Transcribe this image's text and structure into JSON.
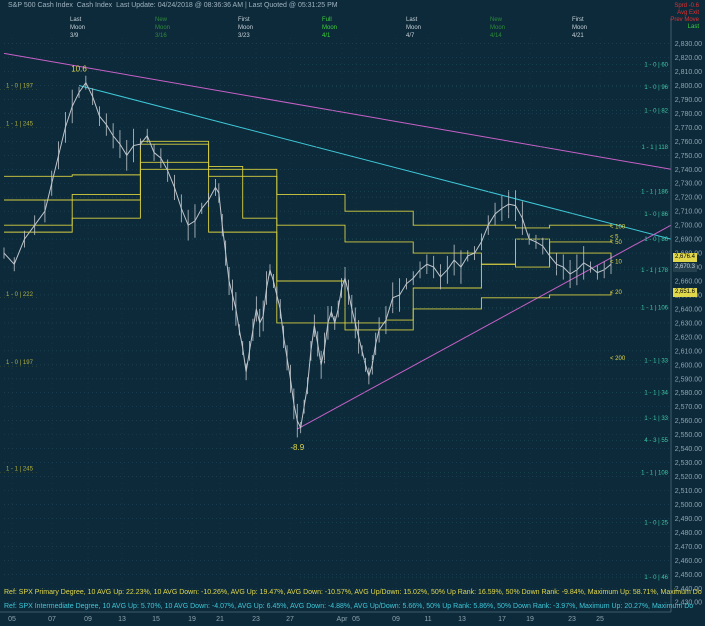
{
  "header": {
    "title": "S&P 500 Cash Index",
    "subtitle": "Cash Index",
    "last_update_label": "Last Update:",
    "last_update": "04/24/2018 @ 08:36:36 AM",
    "last_quoted_label": "Last Quoted @",
    "last_quoted": "05:31:25 PM"
  },
  "moon_phases": [
    {
      "phase": "Last",
      "label": "Moon",
      "date": "3/9",
      "color": "#c8d2d8"
    },
    {
      "phase": "New",
      "label": "Moon",
      "date": "3/16",
      "color": "#2e8b3a"
    },
    {
      "phase": "First",
      "label": "Moon",
      "date": "3/23",
      "color": "#c8d2d8"
    },
    {
      "phase": "Full",
      "label": "Moon",
      "date": "4/1",
      "color": "#3cd23c"
    },
    {
      "phase": "Last",
      "label": "Moon",
      "date": "4/7",
      "color": "#c8d2d8"
    },
    {
      "phase": "New",
      "label": "Moon",
      "date": "4/14",
      "color": "#2e8b3a"
    },
    {
      "phase": "First",
      "label": "Moon",
      "date": "4/21",
      "color": "#c8d2d8"
    }
  ],
  "legend_box": [
    {
      "text": "Sprd  -0.6",
      "color": "#e03030"
    },
    {
      "text": "Avg  Exit",
      "color": "#e03030"
    },
    {
      "text": "Prev  Move",
      "color": "#e03030"
    },
    {
      "text": "Last",
      "color": "#3cd23c"
    }
  ],
  "footers": [
    {
      "text": "Ref: SPX Primary Degree, 10 AVG Up: 22.23%, 10 AVG Down: -10.26%, AVG Up: 19.47%, AVG Down: -10.57%, AVG Up/Down: 15.02%, 50%  Up Rank: 16.59%, 50% Down Rank: -9.84%, Maximum Up: 58.71%, Maximum Do",
      "color": "#e0d84a"
    },
    {
      "text": "Ref: SPX Intermediate Degree, 10 AVG Up: 5.70%, 10 AVG Down: -4.07%, AVG Up: 6.45%, AVG Down: -4.88%, AVG Up/Down: 5.66%, 50%  Up Rank: 5.86%, 50% Down Rank: -3.97%, Maximum Up: 20.27%, Maximum Do",
      "color": "#3ec8d8"
    }
  ],
  "chart_data": {
    "type": "line",
    "xlabel": "",
    "ylabel": "",
    "ylim": [
      2423,
      2834
    ],
    "x_tick_labels": [
      "05",
      "07",
      "09",
      "13",
      "15",
      "19",
      "21",
      "23",
      "27",
      "Apr",
      "05",
      "09",
      "11",
      "13",
      "17",
      "19",
      "23",
      "25"
    ],
    "y_ticks": [
      2430,
      2440,
      2450,
      2460,
      2470,
      2480,
      2490,
      2500,
      2510,
      2520,
      2530,
      2540,
      2550,
      2560,
      2570,
      2580,
      2590,
      2600,
      2610,
      2620,
      2630,
      2640,
      2650,
      2660,
      2670,
      2680,
      2690,
      2700,
      2710,
      2720,
      2730,
      2740,
      2750,
      2760,
      2770,
      2780,
      2790,
      2800,
      2810,
      2820,
      2830
    ],
    "grid": true,
    "price_series": {
      "name": "S&P 500 Cash Index",
      "points": [
        [
          0,
          2680
        ],
        [
          3,
          2672
        ],
        [
          6,
          2690
        ],
        [
          9,
          2700
        ],
        [
          12,
          2710
        ],
        [
          14,
          2730
        ],
        [
          16,
          2750
        ],
        [
          18,
          2770
        ],
        [
          20,
          2785
        ],
        [
          22,
          2795
        ],
        [
          24,
          2802
        ],
        [
          26,
          2792
        ],
        [
          28,
          2778
        ],
        [
          30,
          2772
        ],
        [
          32,
          2764
        ],
        [
          34,
          2758
        ],
        [
          36,
          2750
        ],
        [
          38,
          2757
        ],
        [
          40,
          2758
        ],
        [
          42,
          2764
        ],
        [
          44,
          2752
        ],
        [
          46,
          2748
        ],
        [
          48,
          2739
        ],
        [
          50,
          2727
        ],
        [
          52,
          2712
        ],
        [
          54,
          2700
        ],
        [
          56,
          2703
        ],
        [
          58,
          2712
        ],
        [
          60,
          2718
        ],
        [
          62,
          2727
        ],
        [
          63,
          2723
        ],
        [
          64,
          2700
        ],
        [
          65,
          2680
        ],
        [
          66,
          2660
        ],
        [
          67,
          2650
        ],
        [
          68,
          2640
        ],
        [
          69,
          2625
        ],
        [
          70,
          2612
        ],
        [
          71,
          2595
        ],
        [
          72,
          2610
        ],
        [
          73,
          2625
        ],
        [
          74,
          2640
        ],
        [
          75,
          2630
        ],
        [
          76,
          2635
        ],
        [
          77,
          2655
        ],
        [
          78,
          2668
        ],
        [
          79,
          2660
        ],
        [
          80,
          2650
        ],
        [
          81,
          2640
        ],
        [
          82,
          2620
        ],
        [
          83,
          2605
        ],
        [
          84,
          2590
        ],
        [
          85,
          2572
        ],
        [
          86,
          2560
        ],
        [
          87,
          2555
        ],
        [
          88,
          2570
        ],
        [
          89,
          2585
        ],
        [
          90,
          2610
        ],
        [
          91,
          2628
        ],
        [
          92,
          2615
        ],
        [
          93,
          2600
        ],
        [
          94,
          2612
        ],
        [
          95,
          2630
        ],
        [
          96,
          2638
        ],
        [
          97,
          2630
        ],
        [
          98,
          2640
        ],
        [
          99,
          2655
        ],
        [
          100,
          2662
        ],
        [
          101,
          2652
        ],
        [
          102,
          2640
        ],
        [
          103,
          2630
        ],
        [
          104,
          2620
        ],
        [
          105,
          2610
        ],
        [
          106,
          2600
        ],
        [
          107,
          2592
        ],
        [
          108,
          2600
        ],
        [
          109,
          2615
        ],
        [
          110,
          2625
        ],
        [
          112,
          2632
        ],
        [
          114,
          2648
        ],
        [
          116,
          2650
        ],
        [
          118,
          2658
        ],
        [
          120,
          2662
        ],
        [
          122,
          2668
        ],
        [
          124,
          2672
        ],
        [
          126,
          2670
        ],
        [
          128,
          2663
        ],
        [
          130,
          2668
        ],
        [
          132,
          2675
        ],
        [
          134,
          2670
        ],
        [
          136,
          2678
        ],
        [
          138,
          2680
        ],
        [
          140,
          2688
        ],
        [
          142,
          2700
        ],
        [
          144,
          2708
        ],
        [
          146,
          2712
        ],
        [
          148,
          2715
        ],
        [
          150,
          2714
        ],
        [
          152,
          2705
        ],
        [
          154,
          2690
        ],
        [
          156,
          2688
        ],
        [
          158,
          2685
        ],
        [
          160,
          2678
        ],
        [
          162,
          2672
        ],
        [
          164,
          2670
        ],
        [
          166,
          2665
        ],
        [
          168,
          2668
        ],
        [
          170,
          2673
        ],
        [
          172,
          2670
        ],
        [
          174,
          2666
        ],
        [
          176,
          2668
        ],
        [
          178,
          2672
        ]
      ],
      "color": "#c0c6cc"
    },
    "level_labels_left": [
      {
        "y": 2797,
        "text": "1 - 0 | 197"
      },
      {
        "y": 2770,
        "text": "1 - 1 | 245"
      },
      {
        "y": 2648,
        "text": "1 - 0 | 222"
      },
      {
        "y": 2599,
        "text": "1 - 0 | 197"
      },
      {
        "y": 2523,
        "text": "1 - 1 | 245"
      }
    ],
    "level_labels_right": [
      {
        "y": 2815,
        "text": "1 - 0 | 60"
      },
      {
        "y": 2799,
        "text": "1 - 0 | 96"
      },
      {
        "y": 2782,
        "text": "1 - 0 | 82"
      },
      {
        "y": 2756,
        "text": "1 - 1 | 118"
      },
      {
        "y": 2724,
        "text": "1 - 1 | 186"
      },
      {
        "y": 2708,
        "text": "1 - 0 | 86"
      },
      {
        "y": 2690,
        "text": "1 - 0 | 86"
      },
      {
        "y": 2668,
        "text": "1 - 1 | 178"
      },
      {
        "y": 2641,
        "text": "1 - 1 | 106"
      },
      {
        "y": 2580,
        "text": "1 - 1 | 34"
      },
      {
        "y": 2562,
        "text": "1 - 1 | 33"
      },
      {
        "y": 2546,
        "text": "4 - 3 | 55"
      },
      {
        "y": 2523,
        "text": "1 - 1 | 108"
      },
      {
        "y": 2487,
        "text": "1 - 0 | 25"
      },
      {
        "y": 2448,
        "text": "1 - 0 | 46"
      },
      {
        "y": 2603,
        "text": "1 - 1 | 33"
      }
    ],
    "ma_labels": [
      {
        "y": 2699,
        "text": "< 100"
      },
      {
        "y": 2688,
        "text": "< 50"
      },
      {
        "y": 2674,
        "text": "< 10"
      },
      {
        "y": 2652,
        "text": "< 20"
      },
      {
        "y": 2605,
        "text": "< 200"
      },
      {
        "y": 2692,
        "text": "< 5"
      }
    ],
    "quote_tags": [
      {
        "y": 2677,
        "text": "2,676.4",
        "fg": "#000000",
        "bg": "#e0d84a"
      },
      {
        "y": 2670,
        "text": "2,670.3",
        "fg": "#c8d2d8",
        "bg": "#24404f"
      },
      {
        "y": 2652,
        "text": "2,651.6",
        "fg": "#000000",
        "bg": "#e0d84a"
      }
    ],
    "annotations": [
      {
        "x": 22,
        "y": 2810,
        "text": "10.6",
        "color": "#e0d84a"
      },
      {
        "x": 86,
        "y": 2539,
        "text": "-8.9",
        "color": "#e0d84a"
      }
    ],
    "trendlines": [
      {
        "from": [
          0,
          2823
        ],
        "to": [
          178,
          2740
        ],
        "color": "#c860c8"
      },
      {
        "from": [
          22,
          2800
        ],
        "to": [
          178,
          2690
        ],
        "color": "#3ec8d8"
      },
      {
        "from": [
          86,
          2554
        ],
        "to": [
          178,
          2700
        ],
        "color": "#c860c8"
      }
    ],
    "moving_averages": [
      {
        "name": "MA100",
        "color": "#d8d040",
        "points": [
          [
            0,
            2735
          ],
          [
            20,
            2736
          ],
          [
            40,
            2740
          ],
          [
            60,
            2735
          ],
          [
            80,
            2722
          ],
          [
            100,
            2710
          ],
          [
            120,
            2700
          ],
          [
            140,
            2700
          ],
          [
            150,
            2698
          ],
          [
            160,
            2700
          ],
          [
            178,
            2701
          ]
        ]
      },
      {
        "name": "MA50",
        "color": "#d8d040",
        "points": [
          [
            0,
            2718
          ],
          [
            20,
            2722
          ],
          [
            40,
            2745
          ],
          [
            60,
            2742
          ],
          [
            70,
            2705
          ],
          [
            80,
            2700
          ],
          [
            100,
            2688
          ],
          [
            120,
            2680
          ],
          [
            140,
            2672
          ],
          [
            150,
            2670
          ],
          [
            160,
            2688
          ],
          [
            178,
            2690
          ]
        ]
      },
      {
        "name": "MA20",
        "color": "#d8d040",
        "points": [
          [
            0,
            2700
          ],
          [
            20,
            2705
          ],
          [
            40,
            2758
          ],
          [
            60,
            2740
          ],
          [
            80,
            2660
          ],
          [
            100,
            2630
          ],
          [
            112,
            2632
          ],
          [
            120,
            2640
          ],
          [
            140,
            2648
          ],
          [
            160,
            2650
          ],
          [
            178,
            2652
          ]
        ]
      },
      {
        "name": "MA10",
        "color": "#d8d040",
        "points": [
          [
            0,
            2695
          ],
          [
            20,
            2718
          ],
          [
            40,
            2760
          ],
          [
            60,
            2695
          ],
          [
            80,
            2630
          ],
          [
            100,
            2625
          ],
          [
            120,
            2655
          ],
          [
            140,
            2672
          ],
          [
            150,
            2690
          ],
          [
            160,
            2680
          ],
          [
            178,
            2676
          ]
        ]
      }
    ]
  }
}
